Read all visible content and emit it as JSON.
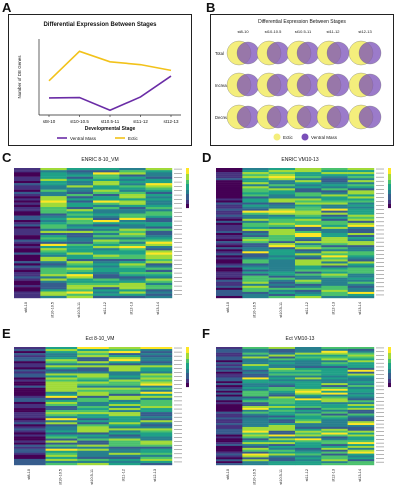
{
  "panels": {
    "A": {
      "letter": "A",
      "chart_data": {
        "type": "line",
        "title": "Differential Expression Between Stages",
        "xlabel": "Developmental Stage",
        "ylabel": "Number of DE Genes",
        "categories": [
          "st8-10",
          "st10-10.5",
          "st10.5-11",
          "st11-12",
          "st12-13"
        ],
        "series": [
          {
            "name": "Ventral Mass",
            "color": "#6a2ca6",
            "values": [
              90,
              92,
              25,
              95,
              205
            ]
          },
          {
            "name": "Ectic",
            "color": "#f2c21a",
            "values": [
              180,
              335,
              280,
              265,
              235
            ]
          }
        ],
        "ylim": [
          0,
          400
        ],
        "legend_position": "bottom"
      }
    },
    "B": {
      "letter": "B",
      "title": "Differential Expression Between Stages",
      "columns": [
        "st8-10",
        "st10-10.5",
        "st10.5-11",
        "st11-12",
        "st12-13"
      ],
      "rows": [
        "Total",
        "Increase",
        "Decrease"
      ],
      "legend": [
        {
          "name": "Ectic",
          "color": "#f4ee7c"
        },
        {
          "name": "Ventral Mass",
          "color": "#7a4fb8"
        }
      ]
    },
    "C": {
      "letter": "C",
      "title": "ENRIC 8-10_VM",
      "columns": [
        "st8-10",
        "st10-10.5",
        "st10.5-11",
        "st11-12",
        "st12-13",
        "st13-14"
      ]
    },
    "D": {
      "letter": "D",
      "title": "ENRIC VM10-13",
      "columns": [
        "st8-10",
        "st10-10.5",
        "st10.5-11",
        "st11-12",
        "st12-13",
        "st13-14"
      ]
    },
    "E": {
      "letter": "E",
      "title": "Ect 8-10_VM",
      "columns": [
        "st8-10",
        "st10-10.5",
        "st10.5-11",
        "st11-12",
        "st12-13"
      ]
    },
    "F": {
      "letter": "F",
      "title": "Ect VM10-13",
      "columns": [
        "st8-10",
        "st10-10.5",
        "st10.5-11",
        "st11-12",
        "st12-13",
        "st13-14"
      ]
    }
  },
  "colors": {
    "viridis": [
      "#440154",
      "#46327e",
      "#365c8d",
      "#277f8e",
      "#1fa187",
      "#4ac16d",
      "#a0da39",
      "#fde725"
    ]
  }
}
